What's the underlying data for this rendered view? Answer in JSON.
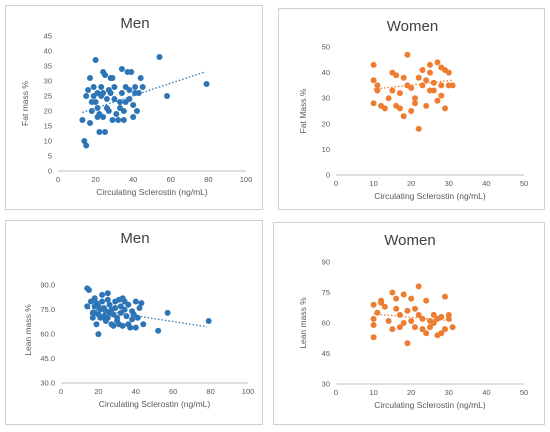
{
  "chart_data": [
    {
      "type": "scatter",
      "title": "Men",
      "xlabel": "Circulating Sclerostin (ng/mL)",
      "ylabel": "Fat mass %",
      "xlim": [
        0,
        100
      ],
      "xticks": [
        0,
        20,
        40,
        60,
        80,
        100
      ],
      "xtick_labels": [
        "0",
        "20",
        "40",
        "60",
        "80",
        "100"
      ],
      "ylim": [
        0,
        45
      ],
      "yticks": [
        0,
        5,
        10,
        15,
        20,
        25,
        30,
        35,
        40,
        45
      ],
      "ytick_labels": [
        "0",
        "5",
        "10",
        "15",
        "20",
        "25",
        "30",
        "35",
        "40",
        "45"
      ],
      "color": "#2e75b6",
      "trendline": [
        [
          13,
          19.5
        ],
        [
          78,
          33
        ]
      ],
      "points": [
        [
          14,
          10
        ],
        [
          15,
          8.5
        ],
        [
          13,
          17
        ],
        [
          15,
          25
        ],
        [
          16,
          27
        ],
        [
          17,
          31
        ],
        [
          18,
          20
        ],
        [
          18,
          23
        ],
        [
          19,
          25
        ],
        [
          19,
          28
        ],
        [
          20,
          37
        ],
        [
          20,
          23
        ],
        [
          21,
          21
        ],
        [
          21,
          26
        ],
        [
          22,
          13
        ],
        [
          22,
          19
        ],
        [
          23,
          28
        ],
        [
          23,
          25
        ],
        [
          24,
          26
        ],
        [
          24,
          18
        ],
        [
          25,
          32
        ],
        [
          25,
          13
        ],
        [
          26,
          24
        ],
        [
          26,
          21
        ],
        [
          27,
          20
        ],
        [
          28,
          26
        ],
        [
          28,
          31
        ],
        [
          29,
          31
        ],
        [
          30,
          24
        ],
        [
          30,
          28
        ],
        [
          31,
          19
        ],
        [
          32,
          17
        ],
        [
          33,
          23
        ],
        [
          33,
          21
        ],
        [
          34,
          34
        ],
        [
          34,
          26
        ],
        [
          35,
          17
        ],
        [
          36,
          28
        ],
        [
          37,
          33
        ],
        [
          38,
          27
        ],
        [
          38,
          24
        ],
        [
          39,
          33
        ],
        [
          40,
          22
        ],
        [
          40,
          18
        ],
        [
          41,
          28
        ],
        [
          41,
          26
        ],
        [
          42,
          20
        ],
        [
          43,
          26
        ],
        [
          44,
          31
        ],
        [
          45,
          28
        ],
        [
          54,
          38
        ],
        [
          58,
          25
        ],
        [
          79,
          29
        ],
        [
          21,
          18
        ],
        [
          27,
          27
        ],
        [
          35,
          20
        ],
        [
          29,
          17
        ],
        [
          24,
          33
        ],
        [
          36,
          23
        ],
        [
          17,
          16
        ]
      ]
    },
    {
      "type": "scatter",
      "title": "Women",
      "xlabel": "Circulating Sclerostin (ng/mL)",
      "ylabel": "Fat Mass %",
      "xlim": [
        0,
        50
      ],
      "xticks": [
        0,
        10,
        20,
        30,
        40,
        50
      ],
      "xtick_labels": [
        "0",
        "10",
        "20",
        "30",
        "40",
        "50"
      ],
      "ylim": [
        0,
        50
      ],
      "yticks": [
        0,
        10,
        20,
        30,
        40,
        50
      ],
      "ytick_labels": [
        "0",
        "10",
        "20",
        "30",
        "40",
        "50"
      ],
      "color": "#ed7d31",
      "trendline": [
        [
          10,
          33.5
        ],
        [
          31,
          37
        ]
      ],
      "points": [
        [
          10,
          43
        ],
        [
          10,
          37
        ],
        [
          10,
          28
        ],
        [
          11,
          35
        ],
        [
          11,
          33
        ],
        [
          12,
          27
        ],
        [
          13,
          26
        ],
        [
          14,
          30
        ],
        [
          15,
          40
        ],
        [
          15,
          33
        ],
        [
          16,
          39
        ],
        [
          16,
          27
        ],
        [
          17,
          26
        ],
        [
          17,
          32
        ],
        [
          18,
          38
        ],
        [
          18,
          23
        ],
        [
          19,
          47
        ],
        [
          19,
          35
        ],
        [
          20,
          34
        ],
        [
          20,
          25
        ],
        [
          21,
          30
        ],
        [
          22,
          18
        ],
        [
          22,
          38
        ],
        [
          23,
          41
        ],
        [
          23,
          35
        ],
        [
          24,
          37
        ],
        [
          24,
          27
        ],
        [
          25,
          40
        ],
        [
          25,
          43
        ],
        [
          26,
          33
        ],
        [
          26,
          36
        ],
        [
          27,
          44
        ],
        [
          27,
          29
        ],
        [
          28,
          35
        ],
        [
          28,
          31
        ],
        [
          28,
          42
        ],
        [
          29,
          41
        ],
        [
          29,
          26
        ],
        [
          30,
          35
        ],
        [
          30,
          40
        ],
        [
          31,
          35
        ],
        [
          21,
          28
        ],
        [
          25,
          33
        ]
      ]
    },
    {
      "type": "scatter",
      "title": "Men",
      "xlabel": "Circulating Sclerostin (ng/mL)",
      "ylabel": "Lean mass %",
      "xlim": [
        0,
        100
      ],
      "xticks": [
        0,
        20,
        40,
        60,
        80,
        100
      ],
      "xtick_labels": [
        "0",
        "20",
        "40",
        "60",
        "80",
        "100"
      ],
      "ylim": [
        30,
        95
      ],
      "yticks": [
        30,
        45,
        60,
        75,
        90
      ],
      "ytick_labels": [
        "30.0",
        "45.0",
        "60.0",
        "75.0",
        "90.0"
      ],
      "color": "#2e75b6",
      "trendline": [
        [
          13,
          76
        ],
        [
          78,
          64.5
        ]
      ],
      "points": [
        [
          14,
          88
        ],
        [
          15,
          87
        ],
        [
          14,
          77
        ],
        [
          16,
          80
        ],
        [
          17,
          70
        ],
        [
          17,
          73
        ],
        [
          18,
          82
        ],
        [
          18,
          77
        ],
        [
          19,
          79
        ],
        [
          19,
          66
        ],
        [
          20,
          60
        ],
        [
          20,
          72
        ],
        [
          21,
          75
        ],
        [
          21,
          70
        ],
        [
          22,
          80
        ],
        [
          22,
          84
        ],
        [
          23,
          76
        ],
        [
          23,
          71
        ],
        [
          24,
          74
        ],
        [
          24,
          68
        ],
        [
          25,
          81
        ],
        [
          25,
          85
        ],
        [
          26,
          78
        ],
        [
          26,
          73
        ],
        [
          27,
          75
        ],
        [
          27,
          66
        ],
        [
          28,
          72
        ],
        [
          29,
          80
        ],
        [
          29,
          76
        ],
        [
          30,
          70
        ],
        [
          30,
          68
        ],
        [
          31,
          81
        ],
        [
          32,
          77
        ],
        [
          32,
          73
        ],
        [
          33,
          82
        ],
        [
          33,
          65
        ],
        [
          34,
          75
        ],
        [
          35,
          71
        ],
        [
          36,
          78
        ],
        [
          36,
          66
        ],
        [
          37,
          64
        ],
        [
          38,
          74
        ],
        [
          38,
          69
        ],
        [
          39,
          72
        ],
        [
          40,
          80
        ],
        [
          40,
          64
        ],
        [
          41,
          70
        ],
        [
          42,
          76
        ],
        [
          43,
          79
        ],
        [
          44,
          66
        ],
        [
          52,
          62
        ],
        [
          57,
          73
        ],
        [
          79,
          68
        ],
        [
          23,
          70
        ],
        [
          28,
          65
        ],
        [
          34,
          80
        ],
        [
          20,
          77
        ],
        [
          31,
          66
        ],
        [
          25,
          70
        ],
        [
          18,
          73
        ]
      ]
    },
    {
      "type": "scatter",
      "title": "Women",
      "xlabel": "Circulating Sclerostin (ng/mL)",
      "ylabel": "Lean mass %",
      "xlim": [
        0,
        50
      ],
      "xticks": [
        0,
        10,
        20,
        30,
        40,
        50
      ],
      "xtick_labels": [
        "0",
        "10",
        "20",
        "30",
        "40",
        "50"
      ],
      "ylim": [
        30,
        90
      ],
      "yticks": [
        30,
        45,
        60,
        75,
        90
      ],
      "ytick_labels": [
        "30",
        "45",
        "60",
        "75",
        "90"
      ],
      "color": "#ed7d31",
      "trendline": [
        [
          10,
          64.5
        ],
        [
          31,
          61
        ]
      ],
      "points": [
        [
          10,
          69
        ],
        [
          10,
          62
        ],
        [
          10,
          59
        ],
        [
          10,
          53
        ],
        [
          11,
          65
        ],
        [
          12,
          71
        ],
        [
          12,
          70
        ],
        [
          13,
          68
        ],
        [
          14,
          61
        ],
        [
          15,
          57
        ],
        [
          15,
          75
        ],
        [
          16,
          72
        ],
        [
          16,
          67
        ],
        [
          17,
          64
        ],
        [
          17,
          58
        ],
        [
          18,
          74
        ],
        [
          18,
          60
        ],
        [
          19,
          50
        ],
        [
          19,
          66
        ],
        [
          20,
          72
        ],
        [
          20,
          61
        ],
        [
          21,
          58
        ],
        [
          22,
          78
        ],
        [
          22,
          64
        ],
        [
          23,
          62
        ],
        [
          23,
          57
        ],
        [
          24,
          71
        ],
        [
          24,
          55
        ],
        [
          25,
          58
        ],
        [
          26,
          64
        ],
        [
          26,
          60
        ],
        [
          27,
          54
        ],
        [
          27,
          62
        ],
        [
          28,
          63
        ],
        [
          28,
          55
        ],
        [
          29,
          57
        ],
        [
          29,
          73
        ],
        [
          30,
          64
        ],
        [
          30,
          62
        ],
        [
          31,
          58
        ],
        [
          21,
          67
        ],
        [
          25,
          61
        ]
      ]
    }
  ]
}
